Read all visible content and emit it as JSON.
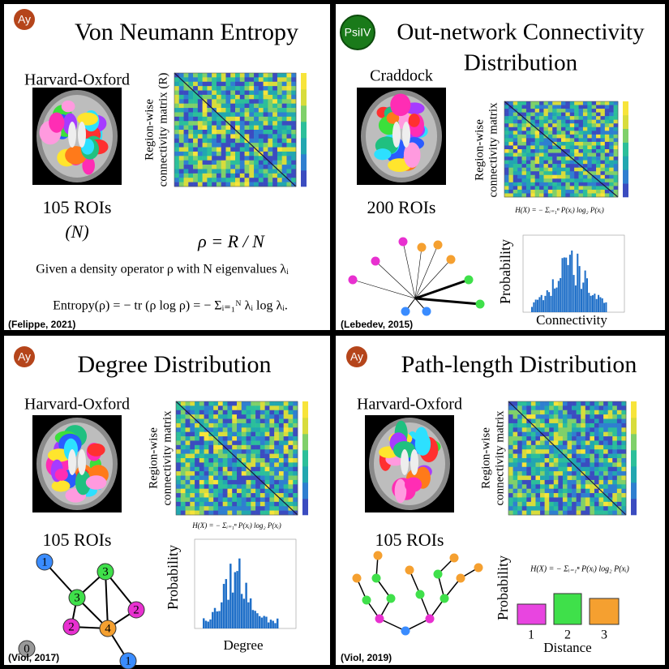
{
  "panels": [
    {
      "badge": "Ay",
      "title": "Von Neumann Entropy",
      "atlas": "Harvard-Oxford",
      "rois": "105 ROIs",
      "rois_note": "(N)",
      "matrix_label": [
        "Region-wise",
        "connectivity matrix (R)"
      ],
      "formula": "ρ = R / N",
      "description": "Given a density operator ρ with N eigenvalues λᵢ",
      "equation": "Entropy(ρ) = − tr (ρ log ρ) = − Σᵢ₌₁ᴺ λᵢ log λᵢ.",
      "citation": "(Felippe, 2021)"
    },
    {
      "badge": "PsiIV",
      "title": [
        "Out-network Connectivity",
        "Distribution"
      ],
      "atlas": "Craddock",
      "rois": "200 ROIs",
      "matrix_label": [
        "Region-wise",
        "connectivity matrix"
      ],
      "formula": "H(X) = − Σᵢ₌₁ⁿ P(xᵢ) log₂ P(xᵢ)",
      "y_label": "Probability",
      "x_label": "Connectivity",
      "citation": "(Lebedev, 2015)"
    },
    {
      "badge": "Ay",
      "title": "Degree Distribution",
      "atlas": "Harvard-Oxford",
      "rois": "105 ROIs",
      "matrix_label": [
        "Region-wise",
        "connectivity matrix"
      ],
      "formula": "H(X) = − Σᵢ₌₁ⁿ P(xᵢ) log₂ P(xᵢ)",
      "y_label": "Probability",
      "x_label": "Degree",
      "node_labels": [
        "1",
        "3",
        "3",
        "2",
        "4",
        "2",
        "1",
        "0"
      ],
      "citation": "(Viol, 2017)"
    },
    {
      "badge": "Ay",
      "title": "Path-length Distribution",
      "atlas": "Harvard-Oxford",
      "rois": "105 ROIs",
      "matrix_label": [
        "Region-wise",
        "connectivity matrix"
      ],
      "formula": "H(X) = − Σᵢ₌₁ⁿ P(xᵢ) log₂ P(xᵢ)",
      "y_label": "Probability",
      "x_label": "Distance",
      "bar_labels": [
        "1",
        "2",
        "3"
      ],
      "citation": "(Viol, 2019)"
    }
  ]
}
